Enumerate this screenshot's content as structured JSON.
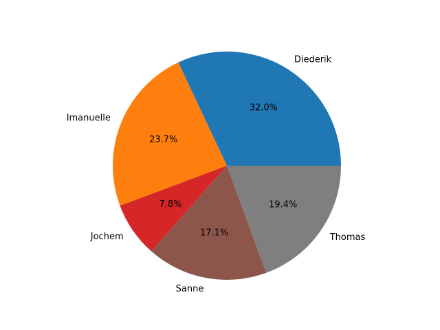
{
  "chart_data": {
    "type": "pie",
    "title": "",
    "start_angle_deg": 0,
    "direction": "counterclockwise",
    "slices": [
      {
        "label": "Diederik",
        "value": 32.0,
        "pct_label": "32.0%",
        "color": "#1f77b4"
      },
      {
        "label": "Imanuelle",
        "value": 23.7,
        "pct_label": "23.7%",
        "color": "#ff7f0e"
      },
      {
        "label": "Jochem",
        "value": 7.8,
        "pct_label": "7.8%",
        "color": "#d62728"
      },
      {
        "label": "Sanne",
        "value": 17.1,
        "pct_label": "17.1%",
        "color": "#8c564b"
      },
      {
        "label": "Thomas",
        "value": 19.4,
        "pct_label": "19.4%",
        "color": "#7f7f7f"
      }
    ]
  }
}
